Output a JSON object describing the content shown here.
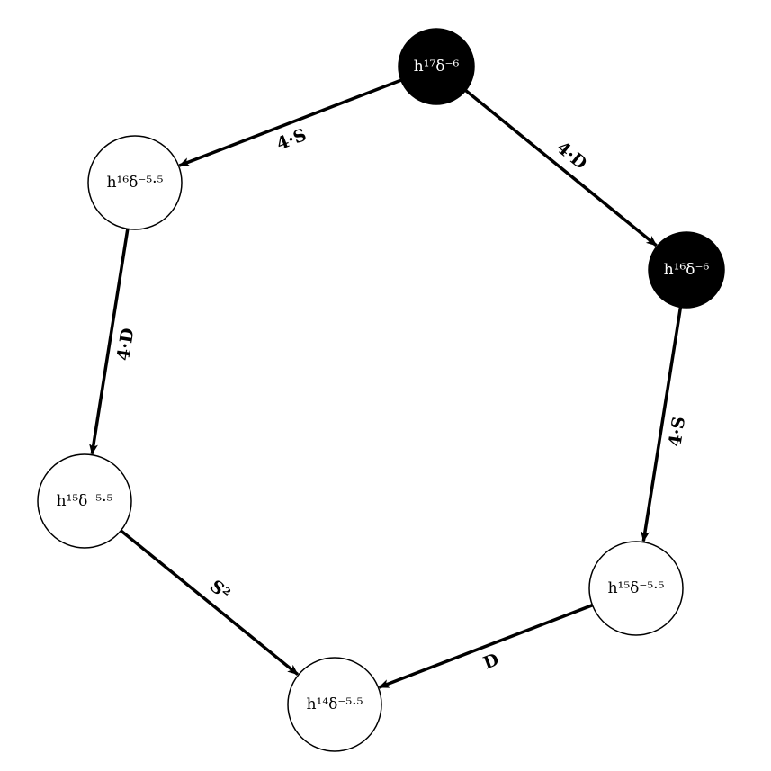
{
  "diagram": {
    "nodes": [
      {
        "id": "n1",
        "label": "h¹⁷δ⁻⁶",
        "filled": true
      },
      {
        "id": "n2",
        "label": "h¹⁶δ⁻⁵·⁵",
        "filled": false
      },
      {
        "id": "n3",
        "label": "h¹⁶δ⁻⁶",
        "filled": true
      },
      {
        "id": "n4",
        "label": "h¹⁵δ⁻⁵·⁵",
        "filled": false
      },
      {
        "id": "n5",
        "label": "h¹⁵δ⁻⁵·⁵",
        "filled": false
      },
      {
        "id": "n6",
        "label": "h¹⁴δ⁻⁵·⁵",
        "filled": false
      }
    ],
    "edges": [
      {
        "from": "n1",
        "to": "n2",
        "label": "4·S"
      },
      {
        "from": "n1",
        "to": "n3",
        "label": "4·D"
      },
      {
        "from": "n2",
        "to": "n4",
        "label": "4·D"
      },
      {
        "from": "n3",
        "to": "n5",
        "label": "4·S"
      },
      {
        "from": "n4",
        "to": "n6",
        "label": "S²"
      },
      {
        "from": "n5",
        "to": "n6",
        "label": "D"
      }
    ],
    "colors": {
      "filled_node": "#000000",
      "empty_node": "#ffffff",
      "stroke": "#000000",
      "filled_text": "#ffffff",
      "empty_text": "#000000"
    }
  }
}
